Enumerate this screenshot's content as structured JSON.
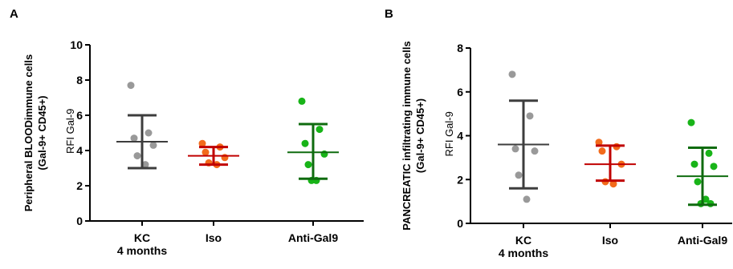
{
  "chart_data": [
    {
      "type": "scatter",
      "panel_label": "A",
      "ylabel_lines": [
        "Peripheral BLOODimmune cells",
        "(Gal-9+ CD45+)"
      ],
      "axis_title": "RFI Gal-9",
      "ylim": [
        0,
        10
      ],
      "yticks": [
        0,
        2,
        4,
        6,
        8,
        10
      ],
      "grid": false,
      "categories": [
        {
          "lines": [
            "KC",
            "4 months"
          ],
          "color": "#999999",
          "bar_color": "#3d3d3d",
          "points": [
            7.7,
            5.0,
            4.7,
            4.3,
            3.7,
            3.2
          ],
          "mean": 4.5,
          "sd_low": 3.0,
          "sd_high": 6.0
        },
        {
          "lines": [
            "Iso"
          ],
          "color": "#f26a1b",
          "bar_color": "#c00000",
          "points": [
            4.4,
            4.2,
            3.9,
            3.6,
            3.3,
            3.2
          ],
          "mean": 3.7,
          "sd_low": 3.2,
          "sd_high": 4.2
        },
        {
          "lines": [
            "Anti-Gal9"
          ],
          "color": "#18b418",
          "bar_color": "#0f6b0f",
          "points": [
            6.8,
            5.2,
            4.4,
            3.8,
            3.2,
            2.3,
            2.3
          ],
          "mean": 3.9,
          "sd_low": 2.4,
          "sd_high": 5.5
        }
      ]
    },
    {
      "type": "scatter",
      "panel_label": "B",
      "ylabel_lines": [
        "PANCREATIC infiltrating immune cells",
        "(Gal-9+ CD45+)"
      ],
      "axis_title": "RFI Gal-9",
      "ylim": [
        0,
        8
      ],
      "yticks": [
        0,
        2,
        4,
        6,
        8
      ],
      "grid": false,
      "categories": [
        {
          "lines": [
            "KC",
            "4 months"
          ],
          "color": "#999999",
          "bar_color": "#3d3d3d",
          "points": [
            6.8,
            4.9,
            3.4,
            3.3,
            2.2,
            1.1
          ],
          "mean": 3.6,
          "sd_low": 1.6,
          "sd_high": 5.6
        },
        {
          "lines": [
            "Iso"
          ],
          "color": "#f26a1b",
          "bar_color": "#c00000",
          "points": [
            3.7,
            3.5,
            3.3,
            2.7,
            1.9,
            1.8
          ],
          "mean": 2.7,
          "sd_low": 1.95,
          "sd_high": 3.55
        },
        {
          "lines": [
            "Anti-Gal9"
          ],
          "color": "#18b418",
          "bar_color": "#0f6b0f",
          "points": [
            4.6,
            3.2,
            2.7,
            2.6,
            1.9,
            1.1,
            0.9,
            0.9
          ],
          "mean": 2.15,
          "sd_low": 0.85,
          "sd_high": 3.45
        }
      ]
    }
  ]
}
